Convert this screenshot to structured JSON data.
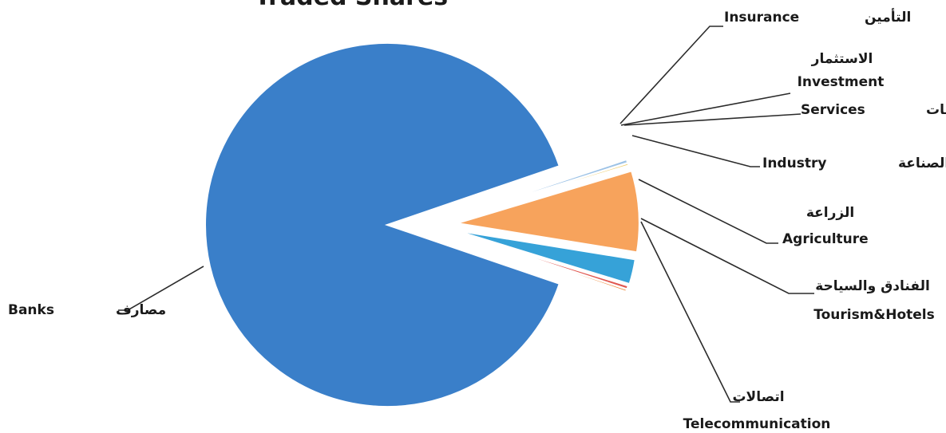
{
  "chart_data": {
    "type": "pie",
    "title": "Traded Shares",
    "slices": [
      {
        "key": "banks",
        "ar": "مصارف",
        "en": "Banks",
        "value": 89.5,
        "color": "#3a7fc9"
      },
      {
        "key": "telecom",
        "ar": "اتصالات",
        "en": "Telecommunication",
        "value": 0.1,
        "color": "#2f6fb5"
      },
      {
        "key": "tourism",
        "ar": "الفنادق والسياحة",
        "en": "Tourism&Hotels",
        "value": 0.3,
        "color": "#9cc2e6"
      },
      {
        "key": "agriculture",
        "ar": "الزراعة",
        "en": "Agriculture",
        "value": 0.2,
        "color": "#f0d070"
      },
      {
        "key": "industry",
        "ar": "الصناعة",
        "en": "Industry",
        "value": 7.2,
        "color": "#f7a35c"
      },
      {
        "key": "services",
        "ar": "الخدمات",
        "en": "Services",
        "value": 2.2,
        "color": "#36a2d8"
      },
      {
        "key": "investment",
        "ar": "الاستثمار",
        "en": "Investment",
        "value": 0.3,
        "color": "#e0574f"
      },
      {
        "key": "insurance",
        "ar": "التأمين",
        "en": "Insurance",
        "value": 0.2,
        "color": "#f08a3c"
      }
    ],
    "legend": "none",
    "labels": "outside-with-leader-lines"
  }
}
